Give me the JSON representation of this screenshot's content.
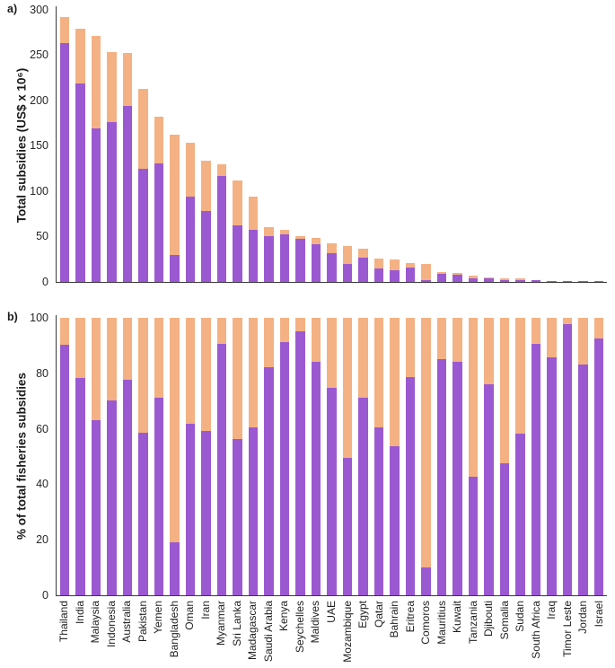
{
  "figure": {
    "background": "#ffffff",
    "panel_a_letter": "a)",
    "panel_b_letter": "b)"
  },
  "colors": {
    "purple": "#9B59D1",
    "orange": "#F4B183",
    "axis": "#3a3a3a",
    "text": "#1a1a1a"
  },
  "chart_data": [
    {
      "panel": "a",
      "type": "bar",
      "stacked": true,
      "title": "",
      "xlabel": "",
      "ylabel": "Total subsidies (US$ x 10⁶)",
      "ylim": [
        0,
        300
      ],
      "yticks": [
        0,
        50,
        100,
        150,
        200,
        250,
        300
      ],
      "grid": false,
      "legend": "none",
      "show_x_labels": false,
      "categories": [
        "Thailand",
        "India",
        "Malaysia",
        "Indonesia",
        "Australia",
        "Pakistan",
        "Yemen",
        "Bangladesh",
        "Oman",
        "Iran",
        "Myanmar",
        "Sri Lanka",
        "Madagascar",
        "Saudi Arabia",
        "Kenya",
        "Seychelles",
        "Maldives",
        "UAE",
        "Mozambique",
        "Egypt",
        "Qatar",
        "Bahrain",
        "Eritrea",
        "Comoros",
        "Mauritius",
        "Kuwait",
        "Tanzania",
        "Djibouti",
        "Somalia",
        "Sudan",
        "South Africa",
        "Iraq",
        "Timor Leste",
        "Jordan",
        "Israel"
      ],
      "series": [
        {
          "name": "purple",
          "color": "#9B59D1",
          "values": [
            263,
            218,
            169,
            176,
            194,
            124,
            130,
            29,
            94,
            78,
            116,
            62,
            57,
            50,
            52,
            47,
            41,
            31,
            19,
            26,
            14,
            12.5,
            15.5,
            1.5,
            8.5,
            7.5,
            3,
            3.6,
            1.8,
            1.7,
            1.6,
            0.85,
            0.75,
            0.4,
            0.35
          ]
        },
        {
          "name": "orange",
          "color": "#F4B183",
          "values": [
            29,
            61,
            102,
            77,
            58,
            88,
            52,
            133,
            59,
            55,
            13,
            49,
            37,
            10,
            5,
            3,
            7,
            11,
            20,
            10,
            11,
            11.5,
            4.5,
            17.5,
            2,
            1.5,
            3.5,
            0.9,
            1.7,
            1.3,
            0.2,
            0.15,
            0.05,
            0.1,
            0.05
          ]
        }
      ],
      "totals": [
        292,
        279,
        271,
        253,
        252,
        212,
        182,
        162,
        153,
        133,
        129,
        111,
        94,
        60,
        57,
        50,
        48,
        42,
        39,
        36,
        25,
        24,
        20,
        19,
        10.5,
        9,
        6.5,
        4.5,
        3.5,
        3,
        1.8,
        1,
        0.8,
        0.5,
        0.4
      ]
    },
    {
      "panel": "b",
      "type": "bar",
      "stacked": true,
      "title": "",
      "xlabel": "",
      "ylabel": "% of total fisheries subsidies",
      "ylim": [
        0,
        100
      ],
      "yticks": [
        0,
        20,
        40,
        60,
        80,
        100
      ],
      "grid": false,
      "legend": "none",
      "show_x_labels": true,
      "categories": [
        "Thailand",
        "India",
        "Malaysia",
        "Indonesia",
        "Australia",
        "Pakistan",
        "Yemen",
        "Bangladesh",
        "Oman",
        "Iran",
        "Myanmar",
        "Sri Lanka",
        "Madagascar",
        "Saudi Arabia",
        "Kenya",
        "Seychelles",
        "Maldives",
        "UAE",
        "Mozambique",
        "Egypt",
        "Qatar",
        "Bahrain",
        "Eritrea",
        "Comoros",
        "Mauritius",
        "Kuwait",
        "Tanzania",
        "Djibouti",
        "Somalia",
        "Sudan",
        "South Africa",
        "Iraq",
        "Timor Leste",
        "Jordan",
        "Israel"
      ],
      "series": [
        {
          "name": "purple",
          "color": "#9B59D1",
          "values": [
            90,
            78,
            63,
            70,
            77.5,
            58.5,
            71,
            19,
            61.5,
            59,
            90.5,
            56,
            60.5,
            82,
            91,
            95,
            84,
            74.5,
            49.5,
            71,
            60.5,
            53.5,
            78.5,
            10,
            85,
            84,
            42.5,
            76,
            47.5,
            58,
            90.5,
            85.5,
            97.5,
            83,
            92.5
          ]
        },
        {
          "name": "orange",
          "color": "#F4B183",
          "values": [
            10,
            22,
            37,
            30,
            22.5,
            41.5,
            29,
            81,
            38.5,
            41,
            9.5,
            44,
            39.5,
            18,
            9,
            5,
            16,
            25.5,
            50.5,
            29,
            39.5,
            46.5,
            21.5,
            90,
            15,
            16,
            57.5,
            24,
            52.5,
            42,
            9.5,
            14.5,
            2.5,
            17,
            7.5
          ]
        }
      ]
    }
  ]
}
